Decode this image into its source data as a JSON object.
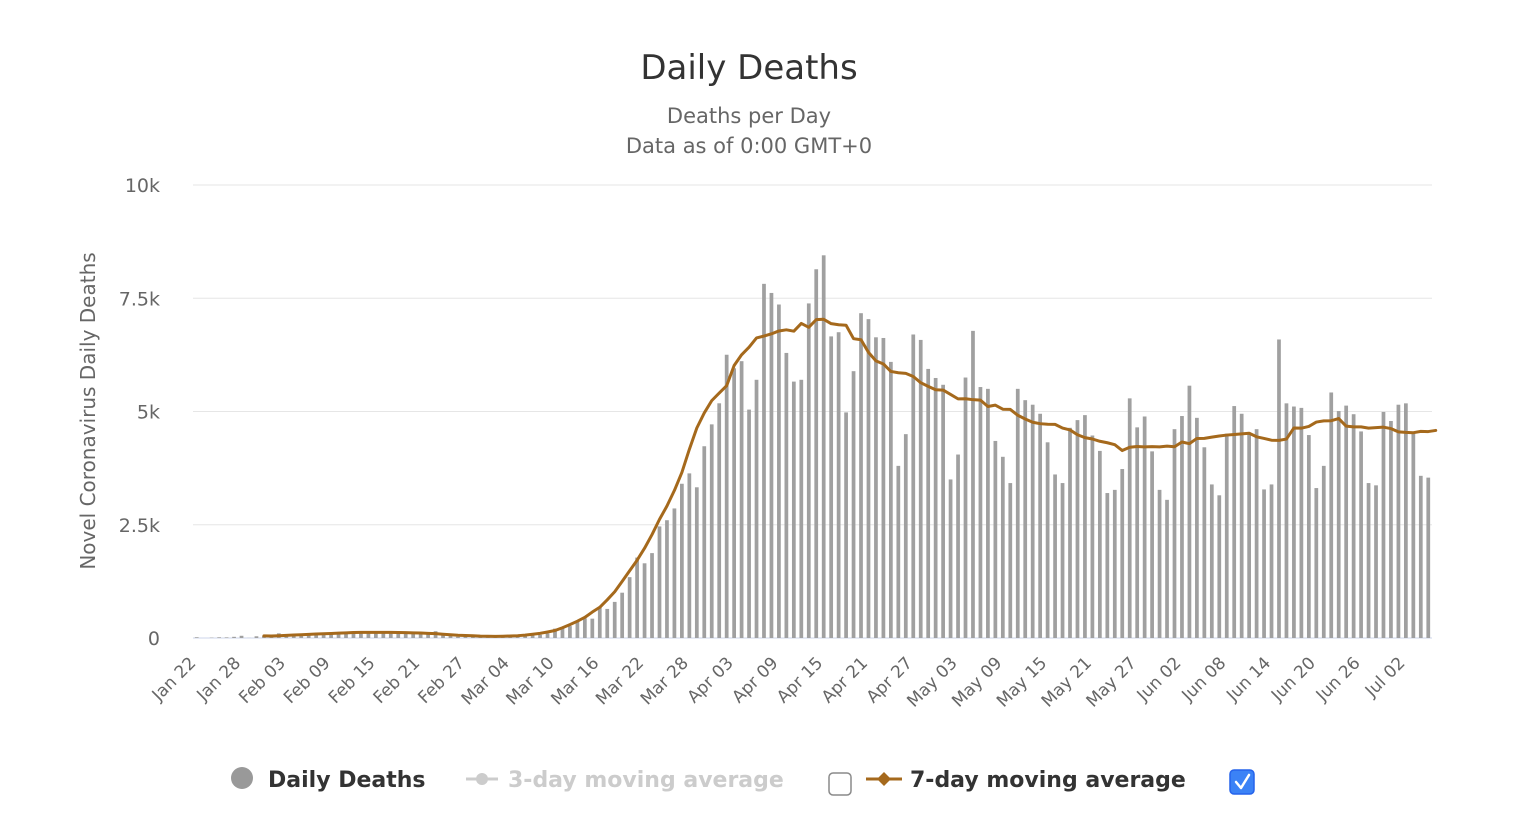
{
  "chart_data": {
    "type": "bar",
    "title": "Daily Deaths",
    "subtitle_lines": [
      "Deaths per Day",
      "Data as of 0:00 GMT+0"
    ],
    "ylabel": "Novel Coronavirus Daily Deaths",
    "xlabel": "",
    "ylim": [
      0,
      10000
    ],
    "y_ticks": [
      0,
      2500,
      5000,
      7500,
      10000
    ],
    "y_tick_labels": [
      "0",
      "2.5k",
      "5k",
      "7.5k",
      "10k"
    ],
    "x_tick_labels": [
      "Jan 22",
      "Jan 28",
      "Feb 03",
      "Feb 09",
      "Feb 15",
      "Feb 21",
      "Feb 27",
      "Mar 04",
      "Mar 10",
      "Mar 16",
      "Mar 22",
      "Mar 28",
      "Apr 03",
      "Apr 09",
      "Apr 15",
      "Apr 21",
      "Apr 27",
      "May 03",
      "May 09",
      "May 15",
      "May 21",
      "May 27",
      "Jun 02",
      "Jun 08",
      "Jun 14",
      "Jun 20",
      "Jun 26",
      "Jul 02"
    ],
    "x_tick_step_days": 6,
    "start_date": "Jan 22",
    "grid": true,
    "legend_position": "bottom",
    "colors": {
      "bars": "#a0a0a0",
      "line7": "#a5691c",
      "grid": "#e6e6e6",
      "axis": "#ccd6eb",
      "hidden": "#cccccc",
      "checkbox_checked": "#3b82f6"
    },
    "series": [
      {
        "name": "Daily Deaths",
        "type": "bar",
        "visible": true,
        "values": [
          17,
          0,
          8,
          16,
          14,
          26,
          49,
          2,
          38,
          42,
          46,
          103,
          64,
          65,
          73,
          73,
          86,
          89,
          97,
          108,
          97,
          146,
          121,
          143,
          142,
          106,
          98,
          139,
          115,
          118,
          109,
          98,
          150,
          70,
          52,
          29,
          44,
          47,
          35,
          42,
          31,
          38,
          37,
          35,
          58,
          69,
          72,
          101,
          207,
          231,
          263,
          365,
          436,
          427,
          673,
          642,
          797,
          1000,
          1343,
          1776,
          1649,
          1874,
          2463,
          2600,
          2860,
          3405,
          3634,
          3327,
          4233,
          4716,
          5181,
          6253,
          5954,
          6111,
          5042,
          5700,
          7818,
          7617,
          7362,
          6293,
          5660,
          5700,
          7386,
          8140,
          8448,
          6658,
          6750,
          4980,
          5890,
          7170,
          7039,
          6638,
          6623,
          6095,
          3800,
          4500,
          6700,
          6580,
          5940,
          5740,
          5590,
          3500,
          4050,
          5750,
          6780,
          5540,
          5500,
          4350,
          4000,
          3420,
          5500,
          5250,
          5150,
          4950,
          4320,
          3610,
          3420,
          4640,
          4810,
          4920,
          4470,
          4130,
          3200,
          3270,
          3730,
          5290,
          4650,
          4890,
          4120,
          3270,
          3050,
          4610,
          4900,
          5570,
          4860,
          4210,
          3390,
          3150,
          4510,
          5120,
          4950,
          4540,
          4610,
          3280,
          3390,
          6590,
          5180,
          5110,
          5080,
          4480,
          3310,
          3800,
          5420,
          5010,
          5130,
          4940,
          4560,
          3420,
          3370,
          4990,
          4790,
          5150,
          5180,
          4550,
          3580,
          3540
        ]
      },
      {
        "name": "3-day moving average",
        "type": "line",
        "visible": false
      },
      {
        "name": "7-day moving average",
        "type": "line",
        "visible": true,
        "start_index": 9,
        "values": [
          47,
          45,
          50,
          58,
          65,
          72,
          79,
          87,
          95,
          100,
          107,
          114,
          122,
          124,
          125,
          125,
          124,
          125,
          121,
          118,
          114,
          111,
          102,
          96,
          82,
          71,
          61,
          55,
          50,
          41,
          38,
          36,
          39,
          44,
          51,
          63,
          83,
          103,
          133,
          166,
          227,
          295,
          371,
          456,
          573,
          678,
          843,
          1020,
          1251,
          1484,
          1717,
          1982,
          2283,
          2618,
          2913,
          3258,
          3655,
          4165,
          4636,
          4968,
          5240,
          5406,
          5570,
          6016,
          6252,
          6419,
          6624,
          6665,
          6714,
          6778,
          6803,
          6773,
          6944,
          6859,
          7028,
          7036,
          6939,
          6916,
          6903,
          6607,
          6584,
          6306,
          6118,
          6049,
          5884,
          5855,
          5841,
          5773,
          5636,
          5554,
          5479,
          5473,
          5377,
          5279,
          5282,
          5261,
          5251,
          5110,
          5140,
          5050,
          5046,
          4917,
          4835,
          4762,
          4731,
          4719,
          4716,
          4634,
          4593,
          4487,
          4424,
          4393,
          4343,
          4310,
          4267,
          4138,
          4212,
          4227,
          4218,
          4225,
          4218,
          4235,
          4221,
          4327,
          4290,
          4405,
          4407,
          4434,
          4459,
          4480,
          4492,
          4506,
          4520,
          4442,
          4405,
          4366,
          4363,
          4392,
          4637,
          4632,
          4671,
          4767,
          4793,
          4797,
          4845,
          4676,
          4660,
          4660,
          4633,
          4644,
          4654,
          4623,
          4550,
          4539,
          4532,
          4561,
          4557,
          4582
        ]
      }
    ]
  },
  "legend": {
    "daily": {
      "label": "Daily Deaths",
      "color": "#999999",
      "text_color": "#333333"
    },
    "avg3": {
      "label": "3-day moving average",
      "color": "#cccccc",
      "text_color": "#cccccc",
      "checked": false
    },
    "avg7": {
      "label": "7-day moving average",
      "color": "#a5691c",
      "text_color": "#333333",
      "checked": true
    }
  }
}
